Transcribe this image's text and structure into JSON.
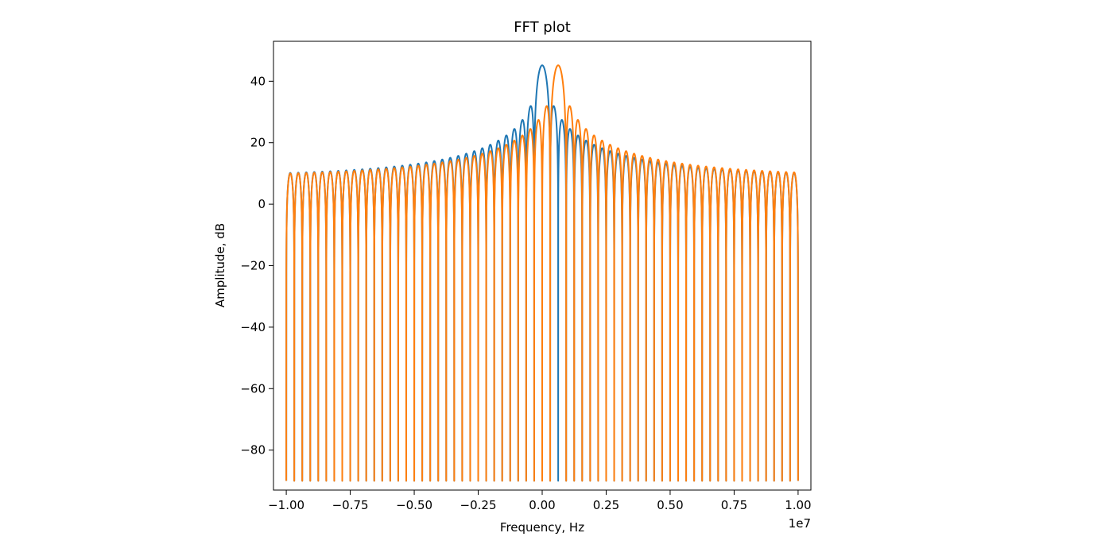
{
  "chart_data": {
    "type": "line",
    "title": "FFT plot",
    "xlabel": "Frequency, Hz",
    "ylabel": "Amplitude, dB",
    "x_offset_label": "1e7",
    "xlim": [
      -10500000,
      10500000
    ],
    "ylim": [
      -93,
      53
    ],
    "x_scale": 10000000,
    "xticks": [
      -1.0,
      -0.75,
      -0.5,
      -0.25,
      0.0,
      0.25,
      0.5,
      0.75,
      1.0
    ],
    "xtick_labels": [
      "−1.00",
      "−0.75",
      "−0.50",
      "−0.25",
      "0.00",
      "0.25",
      "0.50",
      "0.75",
      "1.00"
    ],
    "yticks": [
      40,
      20,
      0,
      -20,
      -40,
      -60,
      -80
    ],
    "ytick_labels": [
      "40",
      "20",
      "0",
      "−20",
      "−40",
      "−60",
      "−80"
    ],
    "grid": false,
    "legend": false,
    "series": [
      {
        "color": "#1f77b4",
        "shape": "sinc-magnitude-db",
        "center_hz": 0,
        "null_spacing_hz": 312500,
        "peak_db": 45.2,
        "far_sidelobe_db": 8.5,
        "floor_db": -90,
        "x_range_hz": [
          -10000000,
          10000000
        ]
      },
      {
        "color": "#ff7f0e",
        "shape": "sinc-magnitude-db",
        "center_hz": 625000,
        "null_spacing_hz": 312500,
        "peak_db": 45.2,
        "far_sidelobe_db": 8.5,
        "floor_db": -90,
        "x_range_hz": [
          -10000000,
          10000000
        ]
      }
    ]
  }
}
